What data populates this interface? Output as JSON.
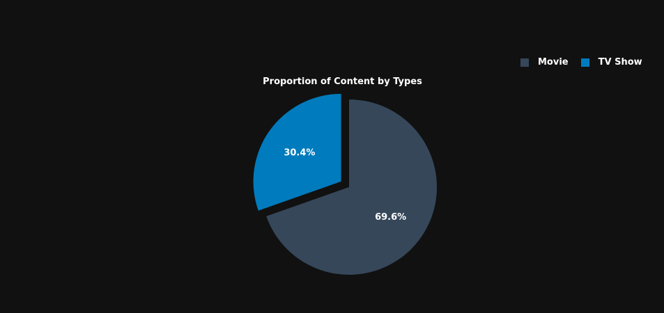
{
  "chart_data": {
    "type": "pie",
    "title": "Proportion of Content by Types",
    "categories": [
      "Movie",
      "TV Show"
    ],
    "values": [
      69.6,
      30.4
    ],
    "labels": [
      "69.6%",
      "30.4%"
    ],
    "colors": [
      "#36475a",
      "#007bbd"
    ],
    "pulled": [
      false,
      true
    ],
    "legend_position": "top-right",
    "background": "#111111"
  },
  "legend": {
    "items": [
      {
        "label": "Movie",
        "color": "#36475a"
      },
      {
        "label": "TV Show",
        "color": "#007bbd"
      }
    ]
  }
}
